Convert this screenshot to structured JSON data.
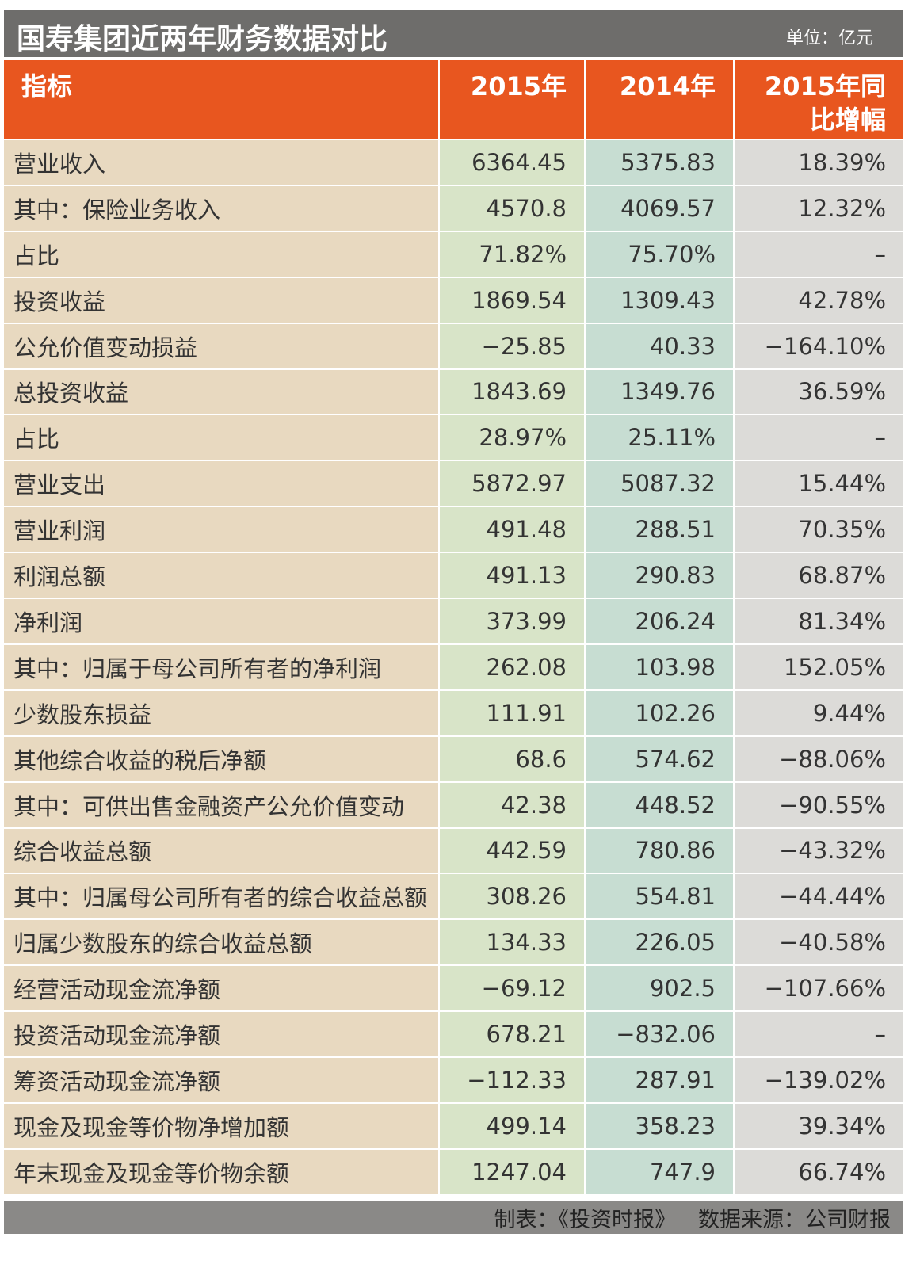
{
  "header": {
    "title": "国寿集团近两年财务数据对比",
    "unit": "单位：亿元"
  },
  "table": {
    "columns": [
      "指标",
      "2015年",
      "2014年",
      [
        "2015年同",
        "比增幅"
      ]
    ],
    "rows": [
      [
        "营业收入",
        "6364.45",
        "5375.83",
        "18.39%"
      ],
      [
        "其中：保险业务收入",
        "4570.8",
        "4069.57",
        "12.32%"
      ],
      [
        "占比",
        "71.82%",
        "75.70%",
        "–"
      ],
      [
        "投资收益",
        "1869.54",
        "1309.43",
        "42.78%"
      ],
      [
        "公允价值变动损益",
        "−25.85",
        "40.33",
        "−164.10%"
      ],
      [
        "总投资收益",
        "1843.69",
        "1349.76",
        "36.59%"
      ],
      [
        "占比",
        "28.97%",
        "25.11%",
        "–"
      ],
      [
        "营业支出",
        "5872.97",
        "5087.32",
        "15.44%"
      ],
      [
        "营业利润",
        "491.48",
        "288.51",
        "70.35%"
      ],
      [
        "利润总额",
        "491.13",
        "290.83",
        "68.87%"
      ],
      [
        "净利润",
        "373.99",
        "206.24",
        "81.34%"
      ],
      [
        "其中：归属于母公司所有者的净利润",
        "262.08",
        "103.98",
        "152.05%"
      ],
      [
        "少数股东损益",
        "111.91",
        "102.26",
        "9.44%"
      ],
      [
        "其他综合收益的税后净额",
        "68.6",
        "574.62",
        "−88.06%"
      ],
      [
        "其中：可供出售金融资产公允价值变动",
        "42.38",
        "448.52",
        "−90.55%"
      ],
      [
        "综合收益总额",
        "442.59",
        "780.86",
        "−43.32%"
      ],
      [
        "其中：归属母公司所有者的综合收益总额",
        "308.26",
        "554.81",
        "−44.44%"
      ],
      [
        "归属少数股东的综合收益总额",
        "134.33",
        "226.05",
        "−40.58%"
      ],
      [
        "经营活动现金流净额",
        "−69.12",
        "902.5",
        "−107.66%"
      ],
      [
        "投资活动现金流净额",
        "678.21",
        "−832.06",
        "–"
      ],
      [
        "筹资活动现金流净额",
        "−112.33",
        "287.91",
        "−139.02%"
      ],
      [
        "现金及现金等价物净增加额",
        "499.14",
        "358.23",
        "39.34%"
      ],
      [
        "年末现金及现金等价物余额",
        "1247.04",
        "747.9",
        "66.74%"
      ]
    ]
  },
  "footer": {
    "maker": "制表：《投资时报》",
    "source": "数据来源：公司财报"
  }
}
